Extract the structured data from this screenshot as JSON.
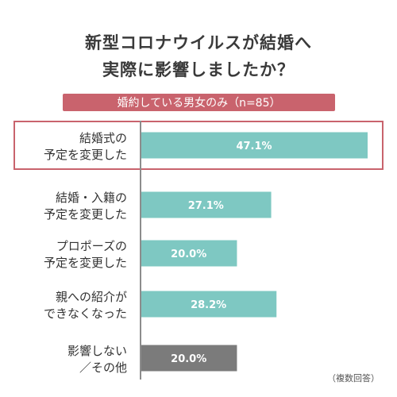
{
  "title": {
    "line1": "新型コロナウイルスが結婚へ",
    "line2": "実際に影響しましたか？"
  },
  "subtitle": "婚約している男女のみ（n=85）",
  "note": "（複数回答）",
  "colors": {
    "accent": "#c9636d",
    "bar": "#7ec8c2",
    "bar_other": "#7b7b7b",
    "axis": "#8c8c8c"
  },
  "chart_data": {
    "type": "bar",
    "orientation": "horizontal",
    "unit": "%",
    "xlim": [
      0,
      47.1
    ],
    "categories": [
      [
        "結婚式の",
        "予定を変更した"
      ],
      [
        "結婚・入籍の",
        "予定を変更した"
      ],
      [
        "プロポーズの",
        "予定を変更した"
      ],
      [
        "親への紹介が",
        "できなくなった"
      ],
      [
        "影響しない",
        "／その他"
      ]
    ],
    "values": [
      47.1,
      27.1,
      20.0,
      28.2,
      20.0
    ],
    "data_labels": [
      "47.1%",
      "27.1%",
      "20.0%",
      "28.2%",
      "20.0%"
    ],
    "highlighted": [
      true,
      false,
      false,
      false,
      false
    ],
    "bar_color_keys": [
      "bar",
      "bar",
      "bar",
      "bar",
      "bar_other"
    ]
  }
}
